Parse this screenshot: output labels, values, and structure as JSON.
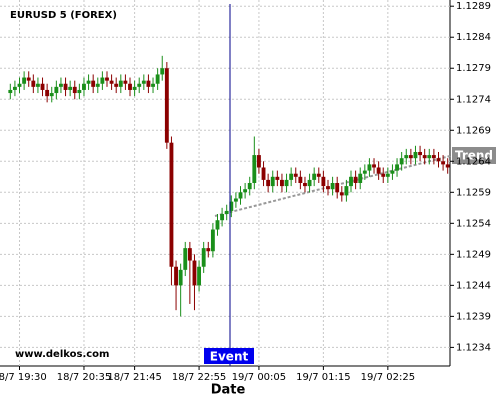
{
  "chart_data": {
    "type": "candlestick",
    "title": "EURUSD 5 (FOREX)",
    "x_label": "Date",
    "watermark": "www.delkos.com",
    "event_label": "Event",
    "trend_label": "Trend",
    "categories": [
      null,
      null,
      "18/7 19:30",
      null,
      null,
      null,
      null,
      null,
      null,
      null,
      null,
      null,
      null,
      null,
      null,
      null,
      "18/7 20:35",
      null,
      null,
      null,
      null,
      null,
      null,
      null,
      null,
      null,
      null,
      "18/7 21:45",
      null,
      null,
      null,
      null,
      null,
      null,
      null,
      null,
      null,
      null,
      null,
      null,
      null,
      "18/7 22:55",
      null,
      null,
      null,
      null,
      null,
      null,
      null,
      null,
      null,
      null,
      null,
      null,
      "19/7 00:05",
      null,
      null,
      null,
      null,
      null,
      null,
      null,
      null,
      null,
      null,
      null,
      null,
      null,
      "19/7 01:15",
      null,
      null,
      null,
      null,
      null,
      null,
      null,
      null,
      null,
      null,
      null,
      null,
      null,
      "19/7 02:25",
      null,
      null,
      null,
      null,
      null,
      null,
      null,
      null,
      null,
      null,
      null,
      null,
      null
    ],
    "open": [
      1.1275,
      1.12755,
      1.1276,
      1.12765,
      1.12775,
      1.1277,
      1.1276,
      1.12765,
      1.12755,
      1.12745,
      1.1275,
      1.1276,
      1.12765,
      1.12755,
      1.1276,
      1.1275,
      1.12755,
      1.12765,
      1.1277,
      1.1276,
      1.12765,
      1.12775,
      1.1277,
      1.12765,
      1.1276,
      1.1277,
      1.12765,
      1.12755,
      1.1276,
      1.12765,
      1.1277,
      1.1276,
      1.12765,
      1.1278,
      1.1279,
      1.1267,
      1.1247,
      1.1244,
      1.12465,
      1.125,
      1.1248,
      1.1244,
      1.1247,
      1.125,
      1.12495,
      1.1253,
      1.12545,
      1.12555,
      1.1256,
      1.12575,
      1.1258,
      1.1259,
      1.12595,
      1.12605,
      1.1265,
      1.1263,
      1.1261,
      1.126,
      1.12615,
      1.1261,
      1.126,
      1.1261,
      1.1262,
      1.12615,
      1.12605,
      1.126,
      1.1261,
      1.1262,
      1.12615,
      1.126,
      1.12595,
      1.12605,
      1.1259,
      1.12585,
      1.126,
      1.12615,
      1.12605,
      1.1262,
      1.12625,
      1.12635,
      1.1263,
      1.1262,
      1.12615,
      1.1262,
      1.12625,
      1.12635,
      1.12645,
      1.1265,
      1.12645,
      1.12655,
      1.1265,
      1.12645,
      1.1265,
      1.12645,
      1.1264,
      1.12635
    ],
    "close": [
      1.12755,
      1.1276,
      1.12765,
      1.12775,
      1.1277,
      1.1276,
      1.12765,
      1.12755,
      1.12745,
      1.1275,
      1.1276,
      1.12765,
      1.12755,
      1.1276,
      1.1275,
      1.12755,
      1.12765,
      1.1277,
      1.1276,
      1.12765,
      1.12775,
      1.1277,
      1.12765,
      1.1276,
      1.1277,
      1.12765,
      1.12755,
      1.1276,
      1.12765,
      1.1277,
      1.1276,
      1.12765,
      1.1278,
      1.1279,
      1.1267,
      1.1247,
      1.1244,
      1.12465,
      1.125,
      1.1248,
      1.1244,
      1.1247,
      1.125,
      1.12495,
      1.1253,
      1.12545,
      1.12555,
      1.1256,
      1.12575,
      1.1258,
      1.1259,
      1.12595,
      1.12605,
      1.1265,
      1.1263,
      1.1261,
      1.126,
      1.12615,
      1.1261,
      1.126,
      1.1261,
      1.1262,
      1.12615,
      1.12605,
      1.126,
      1.1261,
      1.1262,
      1.12615,
      1.126,
      1.12595,
      1.12605,
      1.1259,
      1.12585,
      1.126,
      1.12615,
      1.12605,
      1.1262,
      1.12625,
      1.12635,
      1.1263,
      1.1262,
      1.12615,
      1.1262,
      1.12625,
      1.12635,
      1.12645,
      1.1265,
      1.12645,
      1.12655,
      1.1265,
      1.12645,
      1.1265,
      1.12645,
      1.1264,
      1.12635,
      1.1263
    ],
    "high": [
      1.12765,
      1.1277,
      1.12775,
      1.12785,
      1.12785,
      1.1278,
      1.12775,
      1.12775,
      1.12765,
      1.1276,
      1.1277,
      1.12775,
      1.12775,
      1.1277,
      1.1277,
      1.12765,
      1.12775,
      1.1278,
      1.1278,
      1.12775,
      1.12785,
      1.12785,
      1.1278,
      1.12775,
      1.1278,
      1.1278,
      1.12775,
      1.1277,
      1.12775,
      1.1278,
      1.1278,
      1.12775,
      1.1279,
      1.1281,
      1.128,
      1.1268,
      1.1248,
      1.12475,
      1.1251,
      1.1251,
      1.1249,
      1.1248,
      1.1251,
      1.1251,
      1.1254,
      1.12555,
      1.12565,
      1.1257,
      1.12585,
      1.1259,
      1.126,
      1.12605,
      1.12615,
      1.1268,
      1.1266,
      1.1264,
      1.1262,
      1.12625,
      1.12625,
      1.1262,
      1.1262,
      1.1263,
      1.1263,
      1.12625,
      1.12615,
      1.1262,
      1.1263,
      1.1263,
      1.12625,
      1.1261,
      1.12615,
      1.12615,
      1.126,
      1.1261,
      1.12625,
      1.12625,
      1.1263,
      1.12635,
      1.12645,
      1.12645,
      1.1264,
      1.1263,
      1.1263,
      1.12635,
      1.12645,
      1.12655,
      1.1266,
      1.1266,
      1.12665,
      1.12665,
      1.1266,
      1.1266,
      1.1266,
      1.12655,
      1.1265,
      1.12645
    ],
    "low": [
      1.1274,
      1.12745,
      1.1275,
      1.12755,
      1.1276,
      1.1275,
      1.1275,
      1.12745,
      1.12735,
      1.12735,
      1.1274,
      1.1275,
      1.12745,
      1.12745,
      1.1274,
      1.1274,
      1.12745,
      1.12755,
      1.1275,
      1.1275,
      1.12755,
      1.1276,
      1.12755,
      1.1275,
      1.1275,
      1.12755,
      1.12745,
      1.12745,
      1.1275,
      1.12755,
      1.1275,
      1.1275,
      1.12755,
      1.1277,
      1.1266,
      1.1244,
      1.124,
      1.1239,
      1.12455,
      1.1241,
      1.124,
      1.1243,
      1.1246,
      1.12485,
      1.12485,
      1.1252,
      1.12535,
      1.12545,
      1.1255,
      1.12565,
      1.1257,
      1.1258,
      1.12585,
      1.12595,
      1.1262,
      1.126,
      1.1259,
      1.1259,
      1.126,
      1.1259,
      1.1259,
      1.126,
      1.12605,
      1.12595,
      1.1259,
      1.1259,
      1.126,
      1.12605,
      1.1259,
      1.12585,
      1.12585,
      1.1258,
      1.12575,
      1.12575,
      1.1259,
      1.12595,
      1.12595,
      1.1261,
      1.12615,
      1.1262,
      1.1261,
      1.12605,
      1.12605,
      1.1261,
      1.12615,
      1.12625,
      1.12635,
      1.12635,
      1.12635,
      1.1264,
      1.12635,
      1.12635,
      1.12635,
      1.1263,
      1.12625,
      1.1262
    ],
    "up_color": "#1a8f1a",
    "down_color": "#8b0000",
    "ylim": [
      1.1231,
      1.129
    ],
    "yticks": [
      1.1234,
      1.1239,
      1.1244,
      1.1249,
      1.1254,
      1.1259,
      1.1264,
      1.1269,
      1.1274,
      1.1279,
      1.1284,
      1.1289
    ],
    "grid": true
  }
}
